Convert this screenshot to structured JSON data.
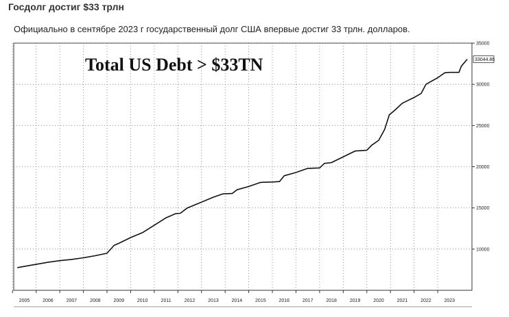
{
  "article": {
    "heading": "Госдолг достиг $33 трлн",
    "lead": "Официально в сентябре 2023 г государственный долг США впервые достиг 33 трлн. долларов."
  },
  "chart_data": {
    "type": "line",
    "title": "Total US Debt > $33TN",
    "xlabel": "",
    "ylabel": "",
    "categories": [
      "2005",
      "2006",
      "2007",
      "2008",
      "2009",
      "2010",
      "2011",
      "2012",
      "2013",
      "2014",
      "2015",
      "2016",
      "2017",
      "2018",
      "2019",
      "2020",
      "2021",
      "2022",
      "2023"
    ],
    "yticks": [
      "10000",
      "15000",
      "20000",
      "25000",
      "30000",
      "35000"
    ],
    "ylim": [
      5000,
      35000
    ],
    "grid": true,
    "last_value_label": "33044.86",
    "series": [
      {
        "values": [
          [
            2004.7,
            7750
          ],
          [
            2005.0,
            7900
          ],
          [
            2005.5,
            8150
          ],
          [
            2006.0,
            8400
          ],
          [
            2006.5,
            8600
          ],
          [
            2007.0,
            8750
          ],
          [
            2007.5,
            8950
          ],
          [
            2008.0,
            9200
          ],
          [
            2008.5,
            9500
          ],
          [
            2008.8,
            10450
          ],
          [
            2009.0,
            10700
          ],
          [
            2009.5,
            11400
          ],
          [
            2010.0,
            12000
          ],
          [
            2010.5,
            12900
          ],
          [
            2011.0,
            13800
          ],
          [
            2011.4,
            14300
          ],
          [
            2011.6,
            14350
          ],
          [
            2011.9,
            15000
          ],
          [
            2012.5,
            15700
          ],
          [
            2013.0,
            16300
          ],
          [
            2013.4,
            16700
          ],
          [
            2013.8,
            16750
          ],
          [
            2014.0,
            17200
          ],
          [
            2014.5,
            17600
          ],
          [
            2015.0,
            18100
          ],
          [
            2015.5,
            18150
          ],
          [
            2015.8,
            18200
          ],
          [
            2016.0,
            18900
          ],
          [
            2016.5,
            19300
          ],
          [
            2017.0,
            19800
          ],
          [
            2017.5,
            19850
          ],
          [
            2017.7,
            20400
          ],
          [
            2018.0,
            20500
          ],
          [
            2018.5,
            21200
          ],
          [
            2019.0,
            21900
          ],
          [
            2019.5,
            22000
          ],
          [
            2019.7,
            22600
          ],
          [
            2020.0,
            23200
          ],
          [
            2020.25,
            24500
          ],
          [
            2020.45,
            26300
          ],
          [
            2020.7,
            26900
          ],
          [
            2021.0,
            27700
          ],
          [
            2021.5,
            28400
          ],
          [
            2021.8,
            28900
          ],
          [
            2022.0,
            30000
          ],
          [
            2022.5,
            30800
          ],
          [
            2022.8,
            31400
          ],
          [
            2023.0,
            31450
          ],
          [
            2023.4,
            31450
          ],
          [
            2023.5,
            32200
          ],
          [
            2023.75,
            33044.86
          ]
        ]
      }
    ]
  },
  "colors": {
    "line": "#111111",
    "grid": "#777777",
    "frame": "#333333"
  }
}
